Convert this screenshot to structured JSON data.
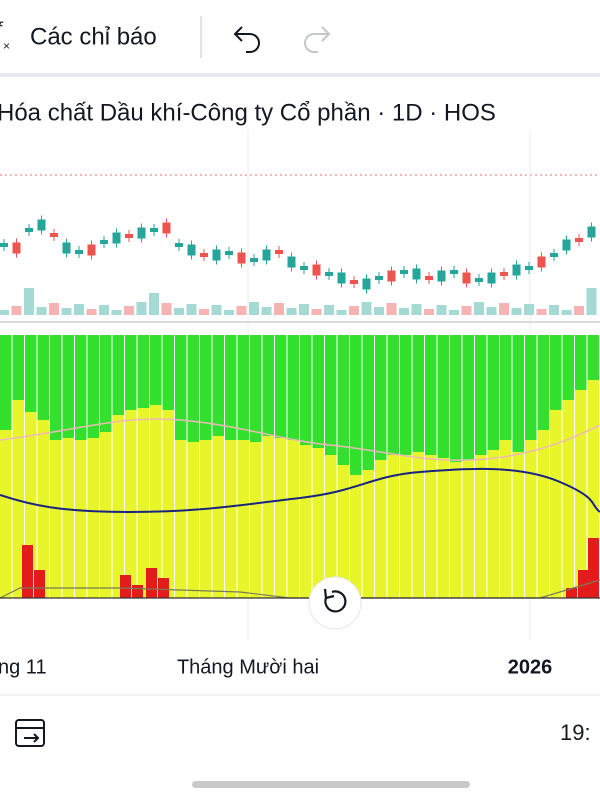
{
  "toolbar": {
    "indicators_label": "Các chỉ báo"
  },
  "header": {
    "title": "Hóa chất Dầu khí-Công ty Cổ phần · 1D · HOS"
  },
  "time_axis": {
    "labels": [
      "ng 11",
      "Tháng Mười hai",
      "2026"
    ]
  },
  "footer": {
    "time": "19:"
  }
}
